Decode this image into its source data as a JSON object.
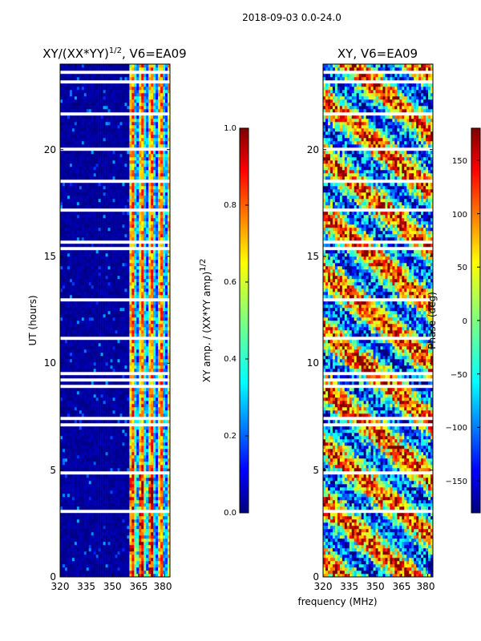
{
  "figure": {
    "suptitle": "2018-09-03 0.0-24.0",
    "xlabel": "frequency (MHz)"
  },
  "colors": {
    "background_low": "#00007f",
    "gap": "#ffffff",
    "axis": "#000000",
    "jet": [
      "#00007f",
      "#0000ff",
      "#007fff",
      "#00ffff",
      "#7fff7f",
      "#ffff00",
      "#ff7f00",
      "#ff0000",
      "#7f0000"
    ]
  },
  "chart_data": [
    {
      "type": "heatmap",
      "title": "XY/(XX*YY)",
      "title_sup": "1/2",
      "title_suffix": ", V6=EA09",
      "ylabel": "UT (hours)",
      "xlabel": "",
      "xlim": [
        320,
        383
      ],
      "ylim": [
        0,
        24
      ],
      "xticks": [
        "320",
        "335",
        "350",
        "365",
        "380"
      ],
      "yticks": [
        "0",
        "5",
        "10",
        "15",
        "20"
      ],
      "colorbar": {
        "label": "XY amp. / (XX*YY amp)",
        "label_sup": "1/2",
        "range": [
          0.0,
          1.0
        ],
        "ticks": [
          "0.0",
          "0.2",
          "0.4",
          "0.6",
          "0.8",
          "1.0"
        ]
      },
      "description_pattern": "near-zero amplitude below 360 MHz, high amplitude stripes 360-383 MHz"
    },
    {
      "type": "heatmap",
      "title": "XY, V6=EA09",
      "ylabel": "",
      "xlabel": "",
      "xlim": [
        320,
        383
      ],
      "ylim": [
        0,
        24
      ],
      "xticks": [
        "320",
        "335",
        "350",
        "365",
        "380"
      ],
      "yticks": [
        "0",
        "5",
        "10",
        "15",
        "20"
      ],
      "colorbar": {
        "label": "Phase (deg)",
        "range": [
          -180,
          180
        ],
        "ticks": [
          "−150",
          "−100",
          "−50",
          "0",
          "50",
          "100",
          "150"
        ]
      }
    }
  ]
}
